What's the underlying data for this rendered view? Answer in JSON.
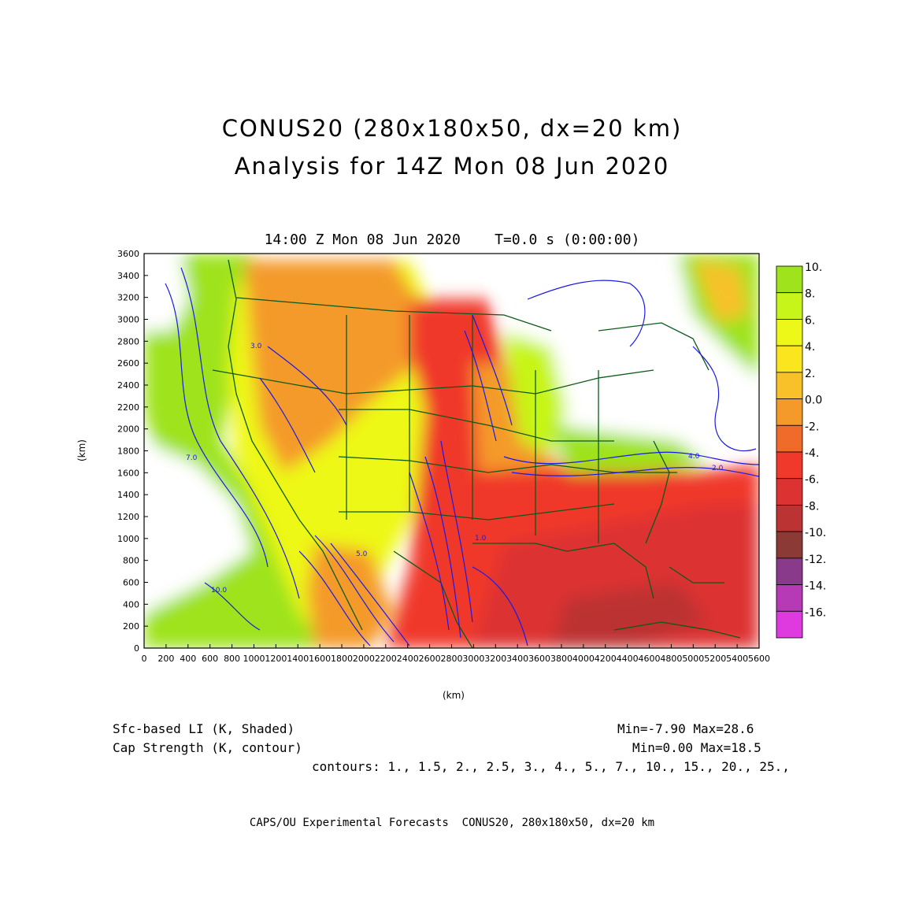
{
  "header": {
    "title_line1": "CONUS20 (280x180x50, dx=20 km)",
    "title_line2": "Analysis for 14Z Mon 08 Jun 2020",
    "plot_time": "14:00 Z Mon 08 Jun 2020    T=0.0 s (0:00:00)"
  },
  "axes": {
    "xlabel": "(km)",
    "ylabel": "(km)",
    "xticks": [
      "0",
      "200",
      "400",
      "600",
      "800",
      "1000",
      "1200",
      "1400",
      "1600",
      "1800",
      "2000",
      "2200",
      "2400",
      "2600",
      "2800",
      "3000",
      "3200",
      "3400",
      "3600",
      "3800",
      "4000",
      "4200",
      "4400",
      "4600",
      "4800",
      "5000",
      "5200",
      "5400",
      "5600"
    ],
    "yticks": [
      "0",
      "200",
      "400",
      "600",
      "800",
      "1000",
      "1200",
      "1400",
      "1600",
      "1800",
      "2000",
      "2200",
      "2400",
      "2600",
      "2800",
      "3000",
      "3200",
      "3400",
      "3600"
    ],
    "xlim": [
      0,
      5600
    ],
    "ylim": [
      0,
      3600
    ]
  },
  "colorbar": {
    "labels": [
      "10.",
      "8.",
      "6.",
      "4.",
      "2.",
      "0.0",
      "-2.",
      "-4.",
      "-6.",
      "-8.",
      "-10.",
      "-12.",
      "-14.",
      "-16."
    ],
    "colors": [
      "#9ee31c",
      "#c7f519",
      "#eef818",
      "#fbe51f",
      "#f8c12a",
      "#f49a2a",
      "#f06a2a",
      "#f0392a",
      "#dd3232",
      "#bc3333",
      "#8c3a35",
      "#8a3a8a",
      "#b63ab6",
      "#de3ae0"
    ]
  },
  "contour_labels": [
    "3.0",
    "4.0",
    "5.0",
    "7.0",
    "10.0",
    "1.0",
    "2.0"
  ],
  "footer": {
    "left_line1": "Sfc-based LI (K, Shaded)",
    "right_line1": "Min=-7.90 Max=28.6",
    "left_line2": "Cap Strength (K, contour)",
    "right_line2": "Min=0.00 Max=18.5",
    "contours": "contours: 1., 1.5, 2., 2.5, 3., 4., 5., 7., 10., 15., 20., 25.,",
    "credit": "CAPS/OU Experimental Forecasts  CONUS20, 280x180x50, dx=20 km"
  }
}
